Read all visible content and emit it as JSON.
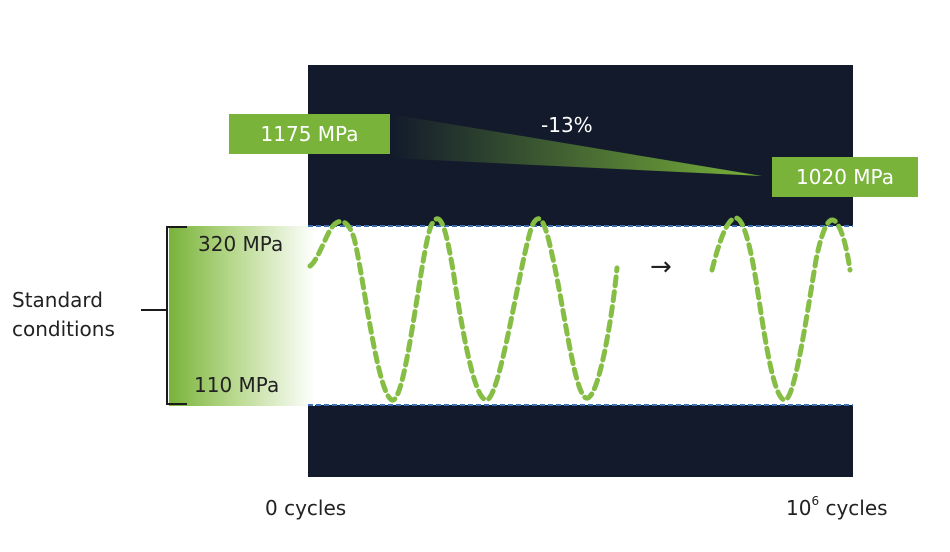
{
  "stress_boxes": {
    "start_value": "1175 MPa",
    "end_value": "1020 MPa",
    "change_percent": "-13%"
  },
  "stress_range": {
    "upper": "320 MPa",
    "lower": "110 MPa",
    "bracket_label_line1": "Standard",
    "bracket_label_line2": "conditions"
  },
  "cycles": {
    "start": "0 cycles",
    "end_base": "10",
    "end_exponent": "6",
    "end_unit": " cycles"
  },
  "arrow_glyph": "→",
  "colors": {
    "accent_green": "#79b33a",
    "dark_panel": "#121a2b",
    "boundary_line": "#3a6fb5"
  }
}
